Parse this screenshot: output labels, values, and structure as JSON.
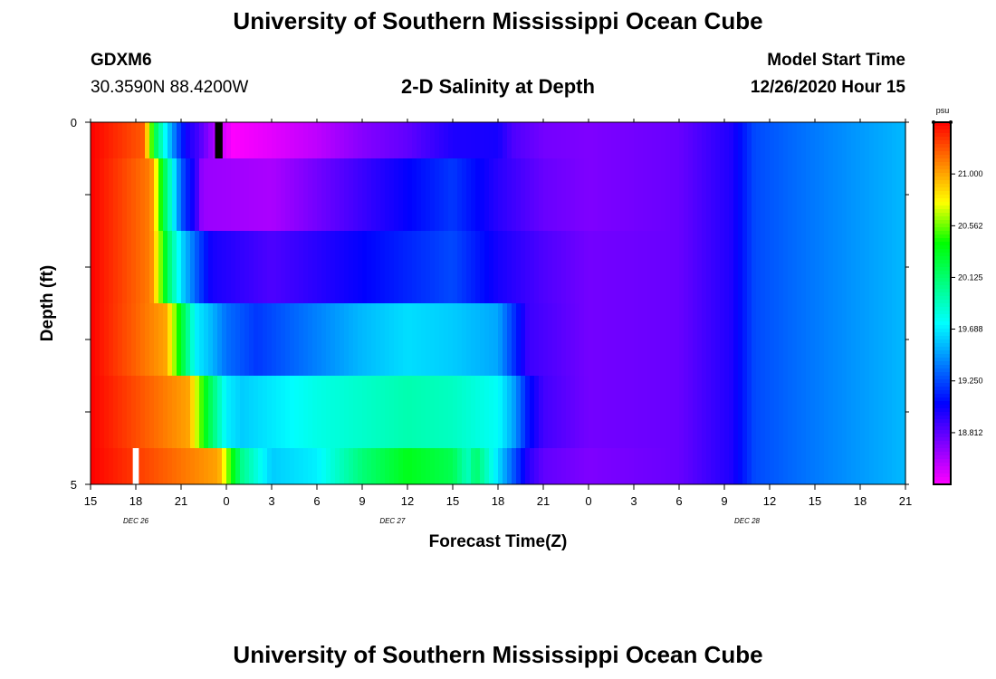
{
  "header": {
    "title": "University of Southern Mississippi Ocean Cube",
    "station_id": "GDXM6",
    "coordinates": "30.3590N 88.4200W",
    "chart_title": "2-D Salinity at Depth",
    "model_start_label": "Model Start Time",
    "model_start_value": "12/26/2020 Hour 15"
  },
  "footer": {
    "title": "University of Southern Mississippi Ocean Cube"
  },
  "chart_data": {
    "type": "heatmap",
    "xlabel": "Forecast Time(Z)",
    "ylabel": "Depth (ft)",
    "x_tick_labels": [
      "15",
      "18",
      "21",
      "0",
      "3",
      "6",
      "9",
      "12",
      "15",
      "18",
      "21",
      "0",
      "3",
      "6",
      "9",
      "12",
      "15",
      "18",
      "21"
    ],
    "x_hours": [
      0,
      3,
      6,
      9,
      12,
      15,
      18,
      21,
      24,
      27,
      30,
      33,
      36,
      39,
      42,
      45,
      48,
      51,
      54
    ],
    "day_labels": [
      {
        "label": "DEC  26",
        "hour": 3
      },
      {
        "label": "DEC  27",
        "hour": 20
      },
      {
        "label": "DEC  28",
        "hour": 43.5
      }
    ],
    "y_tick_labels": [
      "0",
      "5"
    ],
    "ylim": [
      0,
      5
    ],
    "depth_levels": [
      0.25,
      1.0,
      2.0,
      3.0,
      4.0,
      4.75
    ],
    "depth_bounds": [
      0,
      0.5,
      1.5,
      2.5,
      3.5,
      4.5,
      5
    ],
    "units": "psu",
    "colorbar_ticks": [
      "21.000",
      "20.562",
      "20.125",
      "19.688",
      "19.250",
      "18.812"
    ],
    "colorbar_range": [
      18.375,
      21.4375
    ],
    "colormap": [
      "#ff00ff",
      "#8000ff",
      "#0000ff",
      "#0080ff",
      "#00ffff",
      "#00ff80",
      "#00ff00",
      "#ffff00",
      "#ff8000",
      "#ff0000"
    ],
    "missing_color": "#000000",
    "profiles": [
      {
        "depth": 0.25,
        "hours": [
          0,
          3.5,
          4.3,
          5,
          5.8,
          6.4,
          7,
          8.2,
          9.4,
          12,
          15,
          18,
          21,
          24,
          27,
          28,
          30,
          33,
          39,
          42.5,
          44,
          47,
          54
        ],
        "values": [
          21.44,
          21.2,
          20.2,
          19.7,
          19.25,
          19.0,
          18.9,
          18.6,
          18.38,
          18.45,
          18.55,
          18.7,
          18.8,
          18.98,
          19.0,
          18.85,
          18.75,
          18.72,
          18.78,
          18.98,
          19.25,
          19.35,
          19.55
        ]
      },
      {
        "depth": 1.0,
        "hours": [
          0,
          4,
          4.9,
          6,
          7,
          7.4,
          12,
          15,
          18,
          21,
          24,
          27,
          30,
          33,
          39,
          42.5,
          44,
          47,
          54
        ],
        "values": [
          21.44,
          21.1,
          20.2,
          19.3,
          18.92,
          18.65,
          18.6,
          18.75,
          18.9,
          19.05,
          19.2,
          18.95,
          18.78,
          18.72,
          18.78,
          18.98,
          19.25,
          19.35,
          19.55
        ]
      },
      {
        "depth": 2.0,
        "hours": [
          0,
          4,
          5.3,
          6,
          7,
          8,
          12,
          15,
          18,
          21,
          24,
          27,
          30,
          33,
          39,
          42.5,
          44,
          47,
          54
        ],
        "values": [
          21.44,
          21.1,
          20.05,
          19.65,
          19.3,
          19.0,
          18.85,
          18.95,
          19.05,
          19.15,
          19.25,
          19.0,
          18.85,
          18.75,
          18.78,
          18.98,
          19.25,
          19.35,
          19.55
        ]
      },
      {
        "depth": 3.0,
        "hours": [
          0,
          5,
          6.4,
          7,
          8,
          9,
          11,
          12,
          18,
          21,
          24,
          27,
          28,
          29,
          33,
          39,
          42.5,
          44,
          47,
          54
        ],
        "values": [
          21.44,
          21.0,
          20.05,
          19.7,
          19.55,
          19.35,
          19.2,
          19.25,
          19.55,
          19.65,
          19.6,
          19.5,
          19.2,
          18.9,
          18.75,
          18.78,
          18.98,
          19.25,
          19.35,
          19.55
        ]
      },
      {
        "depth": 4.0,
        "hours": [
          0,
          6.5,
          7.8,
          9,
          10,
          15,
          21,
          24,
          27,
          28,
          29,
          30,
          33,
          39,
          42.5,
          44,
          47,
          54
        ],
        "values": [
          21.44,
          21.0,
          20.25,
          19.7,
          19.6,
          19.8,
          19.95,
          19.9,
          19.75,
          19.5,
          19.1,
          18.88,
          18.75,
          18.78,
          18.98,
          19.25,
          19.35,
          19.55
        ]
      },
      {
        "depth": 4.75,
        "hours": [
          0,
          8.5,
          9.3,
          10,
          12,
          15,
          18,
          21,
          24,
          25,
          25.5,
          27,
          28,
          29,
          30,
          33,
          36,
          39,
          42.5,
          44,
          47,
          54
        ],
        "values": [
          21.44,
          21.0,
          20.45,
          20.05,
          19.6,
          19.7,
          20.1,
          20.35,
          20.2,
          19.9,
          20.15,
          19.65,
          19.3,
          18.95,
          18.8,
          18.72,
          18.75,
          18.78,
          18.98,
          19.25,
          19.35,
          19.55
        ]
      }
    ],
    "missing": [
      {
        "depth_index": 0,
        "hour_start": 8.25,
        "hour_end": 8.75
      },
      {
        "depth_index": 5,
        "hour_start": 2.8,
        "hour_end": 3.2,
        "color": "#ffffff"
      }
    ]
  }
}
